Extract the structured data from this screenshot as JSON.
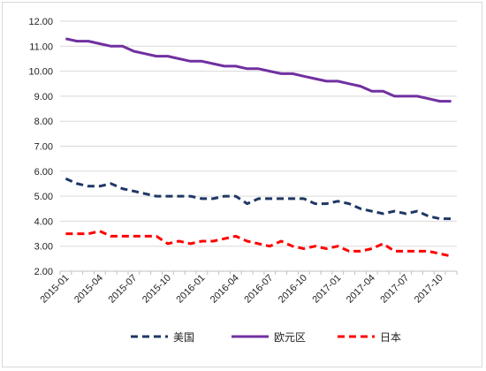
{
  "chart_data": {
    "type": "line",
    "title": "",
    "xlabel": "",
    "ylabel": "",
    "ylim": [
      2.0,
      12.0
    ],
    "ytick_labels": [
      "2.00",
      "3.00",
      "4.00",
      "5.00",
      "6.00",
      "7.00",
      "8.00",
      "9.00",
      "10.00",
      "11.00",
      "12.00"
    ],
    "xtick_labels": [
      "2015-01",
      "2015-04",
      "2015-07",
      "2015-10",
      "2016-01",
      "2016-04",
      "2016-07",
      "2016-10",
      "2017-01",
      "2017-04",
      "2017-07",
      "2017-10"
    ],
    "x": [
      "2015-01",
      "2015-02",
      "2015-03",
      "2015-04",
      "2015-05",
      "2015-06",
      "2015-07",
      "2015-08",
      "2015-09",
      "2015-10",
      "2015-11",
      "2015-12",
      "2016-01",
      "2016-02",
      "2016-03",
      "2016-04",
      "2016-05",
      "2016-06",
      "2016-07",
      "2016-08",
      "2016-09",
      "2016-10",
      "2016-11",
      "2016-12",
      "2017-01",
      "2017-02",
      "2017-03",
      "2017-04",
      "2017-05",
      "2017-06",
      "2017-07",
      "2017-08",
      "2017-09",
      "2017-10",
      "2017-11"
    ],
    "series": [
      {
        "name": "美国",
        "color": "#1f3864",
        "dash": "dashed",
        "values": [
          5.7,
          5.5,
          5.4,
          5.4,
          5.5,
          5.3,
          5.2,
          5.1,
          5.0,
          5.0,
          5.0,
          5.0,
          4.9,
          4.9,
          5.0,
          5.0,
          4.7,
          4.9,
          4.9,
          4.9,
          4.9,
          4.9,
          4.7,
          4.7,
          4.8,
          4.7,
          4.5,
          4.4,
          4.3,
          4.4,
          4.3,
          4.4,
          4.2,
          4.1,
          4.1
        ]
      },
      {
        "name": "欧元区",
        "color": "#7030a0",
        "dash": "solid",
        "values": [
          11.3,
          11.2,
          11.2,
          11.1,
          11.0,
          11.0,
          10.8,
          10.7,
          10.6,
          10.6,
          10.5,
          10.4,
          10.4,
          10.3,
          10.2,
          10.2,
          10.1,
          10.1,
          10.0,
          9.9,
          9.9,
          9.8,
          9.7,
          9.6,
          9.6,
          9.5,
          9.4,
          9.2,
          9.2,
          9.0,
          9.0,
          9.0,
          8.9,
          8.8,
          8.8
        ]
      },
      {
        "name": "日本",
        "color": "#ff0000",
        "dash": "dashed",
        "values": [
          3.5,
          3.5,
          3.5,
          3.6,
          3.4,
          3.4,
          3.4,
          3.4,
          3.4,
          3.1,
          3.2,
          3.1,
          3.2,
          3.2,
          3.3,
          3.4,
          3.2,
          3.1,
          3.0,
          3.2,
          3.0,
          2.9,
          3.0,
          2.9,
          3.0,
          2.8,
          2.8,
          2.9,
          3.1,
          2.8,
          2.8,
          2.8,
          2.8,
          2.7,
          2.6
        ]
      }
    ],
    "grid": "horizontal",
    "legend_position": "bottom"
  }
}
